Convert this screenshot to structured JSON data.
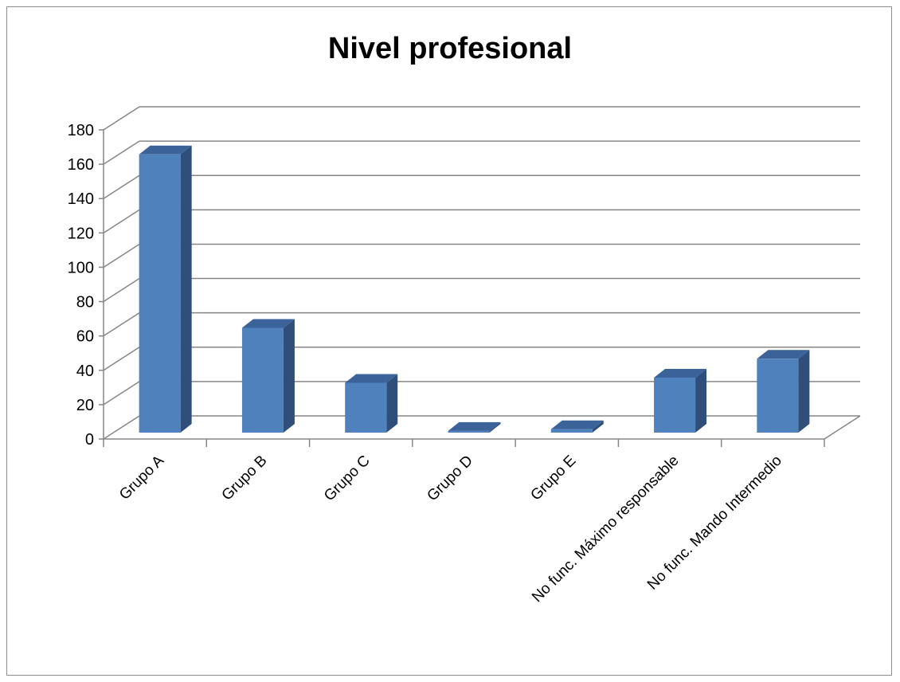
{
  "chart_data": {
    "type": "bar",
    "title": "Nivel profesional",
    "categories": [
      "Grupo A",
      "Grupo B",
      "Grupo C",
      "Grupo D",
      "Grupo E",
      "No func. Máximo responsable",
      "No func. Mando Intermedio"
    ],
    "values": [
      162,
      61,
      29,
      1,
      2,
      32,
      43
    ],
    "ylim": [
      0,
      180
    ],
    "yticks": [
      0,
      20,
      40,
      60,
      80,
      100,
      120,
      140,
      160,
      180
    ],
    "grid": true,
    "legend": "none",
    "colors": {
      "bar_front": "#4f81bd",
      "bar_side": "#2f4f7a",
      "bar_top": "#3b6299",
      "grid": "#868686",
      "frame": "#8c8c8c"
    }
  }
}
